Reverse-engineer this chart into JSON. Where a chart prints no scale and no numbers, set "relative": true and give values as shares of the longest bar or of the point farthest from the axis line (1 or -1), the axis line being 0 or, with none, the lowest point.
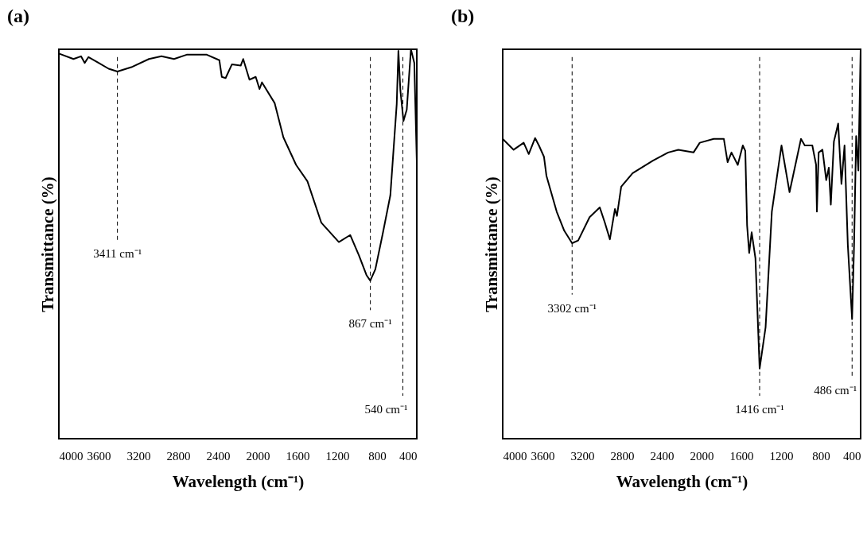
{
  "chart_data": [
    {
      "type": "line",
      "title": "(a)",
      "xlabel": "Wavelength (cm⁻¹)",
      "ylabel": "Transmittance (%)",
      "relative": true,
      "x": [
        4000,
        3853,
        3777,
        3740,
        3702,
        3600,
        3499,
        3411,
        3271,
        3094,
        2968,
        2842,
        2715,
        2512,
        2386,
        2361,
        2323,
        2260,
        2171,
        2146,
        2083,
        2020,
        1982,
        1957,
        1830,
        1742,
        1614,
        1500,
        1361,
        1184,
        1070,
        981,
        906,
        868,
        817,
        742,
        666,
        602,
        585,
        565,
        534,
        501,
        459,
        425,
        400
      ],
      "xlim": [
        4000,
        400
      ],
      "xticks": [
        4000,
        3600,
        3200,
        2800,
        2400,
        2000,
        1600,
        1200,
        800,
        400
      ],
      "series": [
        {
          "color": "#000000",
          "values": [
            0.989,
            0.975,
            0.982,
            0.965,
            0.98,
            0.965,
            0.95,
            0.943,
            0.954,
            0.975,
            0.982,
            0.975,
            0.986,
            0.986,
            0.972,
            0.929,
            0.926,
            0.961,
            0.958,
            0.975,
            0.922,
            0.929,
            0.898,
            0.915,
            0.862,
            0.774,
            0.703,
            0.661,
            0.555,
            0.505,
            0.523,
            0.47,
            0.42,
            0.406,
            0.435,
            0.527,
            0.625,
            0.859,
            0.996,
            0.894,
            0.816,
            0.845,
            1.0,
            0.965,
            0.71
          ]
        }
      ],
      "ref_lines": [
        {
          "axis": "x",
          "value": 3411,
          "label": "3411 cm⁻¹",
          "color": "#000000",
          "line_style": "dashed"
        },
        {
          "axis": "x",
          "value": 867,
          "label": "867 cm⁻¹",
          "color": "#000000",
          "line_style": "dashed"
        },
        {
          "axis": "x",
          "value": 540,
          "label": "540 cm⁻¹",
          "color": "#000000",
          "line_style": "dashed"
        }
      ]
    },
    {
      "type": "line",
      "title": "(b)",
      "xlabel": "Wavelength (cm⁻¹)",
      "ylabel": "Transmittance (%)",
      "relative": true,
      "x": [
        4000,
        3890,
        3789,
        3738,
        3674,
        3636,
        3585,
        3560,
        3457,
        3381,
        3302,
        3241,
        3126,
        3024,
        2973,
        2922,
        2871,
        2851,
        2808,
        2693,
        2489,
        2336,
        2234,
        2081,
        2018,
        1878,
        1776,
        1738,
        1699,
        1636,
        1585,
        1560,
        1542,
        1521,
        1496,
        1458,
        1416,
        1356,
        1293,
        1196,
        1115,
        1000,
        962,
        886,
        848,
        840,
        822,
        784,
        746,
        720,
        700,
        669,
        626,
        593,
        562,
        529,
        486,
        466,
        445,
        423,
        400
      ],
      "xlim": [
        4000,
        400
      ],
      "xticks": [
        4000,
        3600,
        3200,
        2800,
        2400,
        2000,
        1600,
        1200,
        800,
        400
      ],
      "series": [
        {
          "color": "#000000",
          "values": [
            0.77,
            0.742,
            0.76,
            0.731,
            0.772,
            0.753,
            0.724,
            0.675,
            0.583,
            0.534,
            0.502,
            0.509,
            0.569,
            0.594,
            0.555,
            0.512,
            0.59,
            0.572,
            0.647,
            0.682,
            0.714,
            0.735,
            0.742,
            0.735,
            0.76,
            0.77,
            0.77,
            0.71,
            0.735,
            0.703,
            0.753,
            0.739,
            0.548,
            0.477,
            0.53,
            0.463,
            0.18,
            0.286,
            0.583,
            0.753,
            0.633,
            0.77,
            0.753,
            0.753,
            0.703,
            0.583,
            0.735,
            0.742,
            0.664,
            0.696,
            0.601,
            0.763,
            0.809,
            0.654,
            0.753,
            0.498,
            0.307,
            0.498,
            0.777,
            0.689,
            1.0
          ]
        }
      ],
      "ref_lines": [
        {
          "axis": "x",
          "value": 3302,
          "label": "3302 cm⁻¹",
          "color": "#000000",
          "line_style": "dashed"
        },
        {
          "axis": "x",
          "value": 1416,
          "label": "1416 cm⁻¹",
          "color": "#000000",
          "line_style": "dashed"
        },
        {
          "axis": "x",
          "value": 486,
          "label": "486 cm⁻¹",
          "color": "#000000",
          "line_style": "dashed"
        }
      ]
    }
  ]
}
